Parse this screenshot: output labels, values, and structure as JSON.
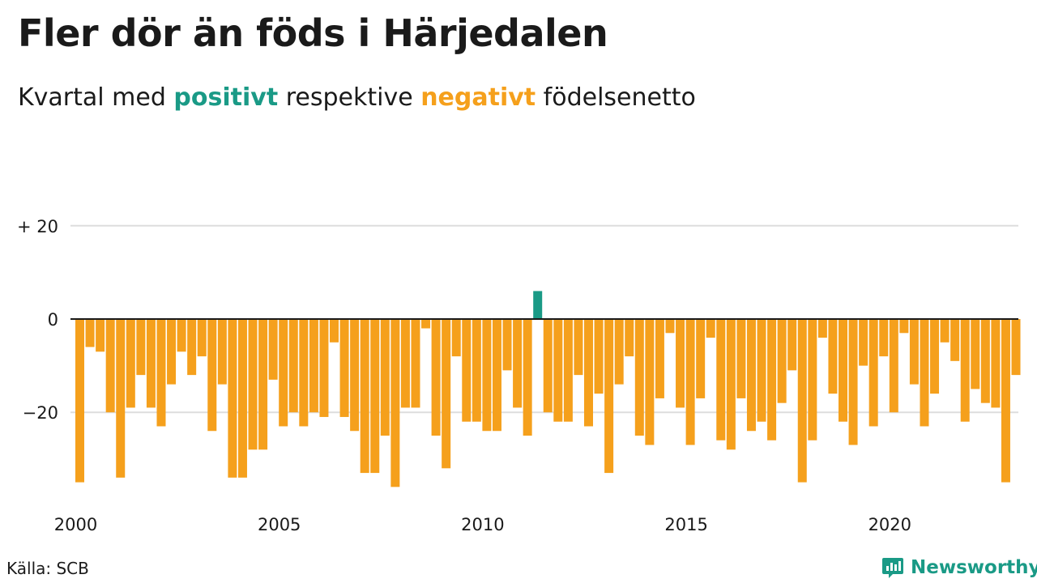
{
  "title": "Fler dör än föds i Härjedalen",
  "subtitle": {
    "prefix": "Kvartal med ",
    "positive_word": "positivt",
    "middle": " respektive ",
    "negative_word": "negativt",
    "suffix": " födelsenetto"
  },
  "source": "Källa: SCB",
  "brand": "Newsworthy",
  "colors": {
    "positive": "#1a9a86",
    "negative": "#f5a01c",
    "grid": "#dddddd",
    "baseline": "#1a1a1a",
    "text": "#1a1a1a"
  },
  "chart_data": {
    "type": "bar",
    "x_start": "2000 Q1",
    "frequency": "quarterly",
    "y_ticks": [
      {
        "value": 20,
        "label": "+ 20"
      },
      {
        "value": 0,
        "label": "0"
      },
      {
        "value": -20,
        "label": "−20"
      }
    ],
    "x_ticks": [
      {
        "year": 2000,
        "label": "2000"
      },
      {
        "year": 2005,
        "label": "2005"
      },
      {
        "year": 2010,
        "label": "2010"
      },
      {
        "year": 2015,
        "label": "2015"
      },
      {
        "year": 2020,
        "label": "2020"
      }
    ],
    "ylim": [
      -37,
      26
    ],
    "grid": true,
    "values": [
      -35,
      -6,
      -7,
      -20,
      -34,
      -19,
      -12,
      -19,
      -23,
      -14,
      -7,
      -12,
      -8,
      -24,
      -14,
      -34,
      -34,
      -28,
      -28,
      -13,
      -23,
      -20,
      -23,
      -20,
      -21,
      -5,
      -21,
      -24,
      -33,
      -33,
      -25,
      -36,
      -19,
      -19,
      -2,
      -25,
      -32,
      -8,
      -22,
      -22,
      -24,
      -24,
      -11,
      -19,
      -25,
      6,
      -20,
      -22,
      -22,
      -12,
      -23,
      -16,
      -33,
      -14,
      -8,
      -25,
      -27,
      -17,
      -3,
      -19,
      -27,
      -17,
      -4,
      -26,
      -28,
      -17,
      -24,
      -22,
      -26,
      -18,
      -11,
      -35,
      -26,
      -4,
      -16,
      -22,
      -27,
      -10,
      -23,
      -8,
      -20,
      -3,
      -14,
      -23,
      -16,
      -5,
      -9,
      -22,
      -15,
      -18,
      -19,
      -35,
      -12
    ]
  }
}
